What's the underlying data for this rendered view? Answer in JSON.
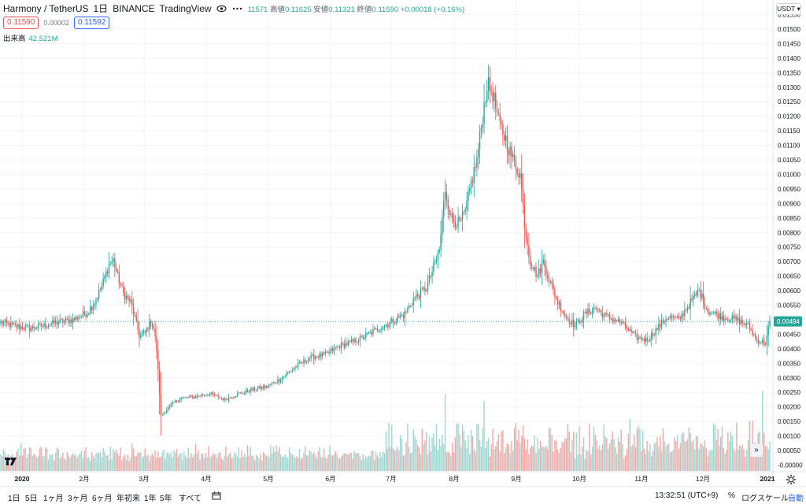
{
  "legend": {
    "symbol": "Harmony / TetherUS",
    "interval": "1日",
    "exchange": "BINANCE",
    "source": "TradingView",
    "ohlc_text": "11571",
    "high_label": "高値",
    "high": "0.11625",
    "low_label": "安値",
    "low": "0.11321",
    "close_label": "終値",
    "close": "0.11590",
    "change": "+0.00018 (+0.16%)"
  },
  "prices": {
    "sell": "0.11590",
    "spread": "0.00002",
    "buy": "0.11592"
  },
  "volume_legend": {
    "label": "出来高",
    "value": "42.521M"
  },
  "currency": "USDT",
  "last_price_label": "0.00494",
  "toolbar": {
    "timeframes": [
      "1日",
      "5日",
      "1ヶ月",
      "3ヶ月",
      "6ヶ月",
      "年初来",
      "1年",
      "5年",
      "すべて"
    ],
    "clock": "13:32:51 (UTC+9)",
    "percent": "%",
    "log": "ログスケール",
    "auto": "自動"
  },
  "colors": {
    "up": "#26a69a",
    "down": "#ef5350",
    "up_vol": "#9fd6d0",
    "down_vol": "#f4a8a6",
    "last": "#26a69a"
  },
  "icons": [
    "eye-icon",
    "more-icon",
    "date-range-icon",
    "settings-icon",
    "tradingview-logo-icon",
    "scroll-right-icon"
  ],
  "chart_data": {
    "type": "candlestick",
    "ylim": [
      -1e-05,
      0.01555
    ],
    "y_ticks": [
      "0.01550",
      "0.01500",
      "0.01450",
      "0.01400",
      "0.01350",
      "0.01300",
      "0.01250",
      "0.01200",
      "0.01150",
      "0.01100",
      "0.01050",
      "0.01000",
      "0.00950",
      "0.00900",
      "0.00850",
      "0.00800",
      "0.00750",
      "0.00700",
      "0.00650",
      "0.00600",
      "0.00550",
      "0.00500",
      "0.00450",
      "0.00400",
      "0.00350",
      "0.00300",
      "0.00250",
      "0.00200",
      "0.00150",
      "0.00100",
      "0.00050",
      "-0.00000"
    ],
    "x_ticks": [
      "2020",
      "2月",
      "3月",
      "4月",
      "5月",
      "6月",
      "7月",
      "8月",
      "9月",
      "10月",
      "11月",
      "12月",
      "2021"
    ],
    "close_path": [
      [
        0,
        0.0049
      ],
      [
        10,
        0.00478
      ],
      [
        20,
        0.0047
      ],
      [
        30,
        0.0048
      ],
      [
        40,
        0.00492
      ],
      [
        50,
        0.005
      ],
      [
        60,
        0.00525
      ],
      [
        65,
        0.0056
      ],
      [
        70,
        0.00615
      ],
      [
        75,
        0.0069
      ],
      [
        78,
        0.00705
      ],
      [
        81,
        0.0065
      ],
      [
        85,
        0.0059
      ],
      [
        90,
        0.0056
      ],
      [
        94,
        0.00485
      ],
      [
        96,
        0.00445
      ],
      [
        100,
        0.00455
      ],
      [
        104,
        0.00495
      ],
      [
        106,
        0.0047
      ],
      [
        108,
        0.004
      ],
      [
        111,
        0.0017
      ],
      [
        114,
        0.00185
      ],
      [
        117,
        0.002
      ],
      [
        120,
        0.00215
      ],
      [
        125,
        0.0023
      ],
      [
        135,
        0.00235
      ],
      [
        145,
        0.00245
      ],
      [
        155,
        0.00225
      ],
      [
        165,
        0.00245
      ],
      [
        175,
        0.0026
      ],
      [
        185,
        0.0027
      ],
      [
        195,
        0.003
      ],
      [
        205,
        0.0034
      ],
      [
        215,
        0.0037
      ],
      [
        225,
        0.0038
      ],
      [
        235,
        0.0041
      ],
      [
        245,
        0.00425
      ],
      [
        255,
        0.0045
      ],
      [
        262,
        0.0047
      ],
      [
        270,
        0.0049
      ],
      [
        280,
        0.0052
      ],
      [
        286,
        0.0057
      ],
      [
        295,
        0.0061
      ],
      [
        300,
        0.0068
      ],
      [
        304,
        0.0074
      ],
      [
        308,
        0.0095
      ],
      [
        312,
        0.0085
      ],
      [
        318,
        0.0083
      ],
      [
        322,
        0.0087
      ],
      [
        326,
        0.0097
      ],
      [
        330,
        0.0105
      ],
      [
        334,
        0.012
      ],
      [
        337,
        0.0131
      ],
      [
        341,
        0.0128
      ],
      [
        345,
        0.0118
      ],
      [
        350,
        0.0112
      ],
      [
        355,
        0.0105
      ],
      [
        360,
        0.01
      ],
      [
        363,
        0.0083
      ],
      [
        367,
        0.007
      ],
      [
        372,
        0.0065
      ],
      [
        376,
        0.007
      ],
      [
        380,
        0.0064
      ],
      [
        386,
        0.0056
      ],
      [
        392,
        0.0051
      ],
      [
        398,
        0.0048
      ],
      [
        405,
        0.0052
      ],
      [
        412,
        0.0054
      ],
      [
        420,
        0.0051
      ],
      [
        430,
        0.0049
      ],
      [
        440,
        0.0044
      ],
      [
        448,
        0.0043
      ],
      [
        455,
        0.0047
      ],
      [
        462,
        0.0051
      ],
      [
        470,
        0.005
      ],
      [
        478,
        0.0056
      ],
      [
        484,
        0.006
      ],
      [
        490,
        0.0053
      ],
      [
        500,
        0.0051
      ],
      [
        510,
        0.005
      ],
      [
        518,
        0.0048
      ],
      [
        524,
        0.0043
      ],
      [
        530,
        0.0042
      ],
      [
        533,
        0.00494
      ]
    ],
    "volume_ylim": [
      0,
      0.0026
    ],
    "notable_volume_spikes": [
      [
        308,
        0.00245
      ],
      [
        335,
        0.0022
      ],
      [
        528,
        0.00255
      ]
    ],
    "last_close": 0.00494
  }
}
